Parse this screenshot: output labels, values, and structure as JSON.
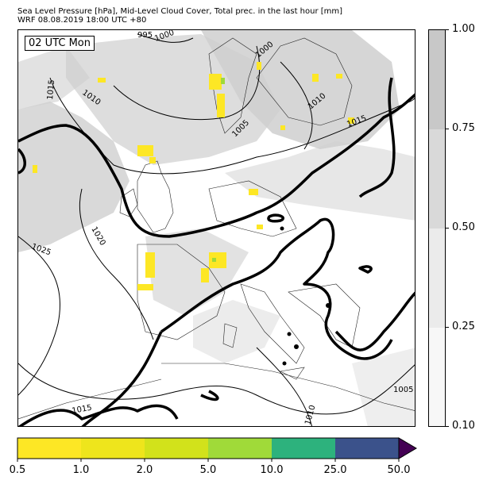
{
  "header": {
    "title_line1": "Sea Level Pressure [hPa], Mid-Level Cloud Cover, Total prec. in the last hour [mm]",
    "title_line2": "WRF 08.08.2019 18:00 UTC +80"
  },
  "map": {
    "time_label": "02 UTC Mon",
    "isobar_labels": [
      "995",
      "1000",
      "1000",
      "1015",
      "1010",
      "1010",
      "1005",
      "1015",
      "1020",
      "1025",
      "1015",
      "1010",
      "1005"
    ]
  },
  "cloud_colorbar": {
    "ticks": [
      "1.00",
      "0.75",
      "0.50",
      "0.25",
      "0.10"
    ],
    "colors": [
      "#c8c8c8",
      "#d9d9d9",
      "#ebebeb",
      "#f7f7f7"
    ]
  },
  "precip_colorbar": {
    "ticks": [
      "0.5",
      "1.0",
      "2.0",
      "5.0",
      "10.0",
      "25.0",
      "50.0"
    ],
    "colors": [
      "#fde725",
      "#eee51c",
      "#d2e21b",
      "#a0da39",
      "#2db27d",
      "#3b528b",
      "#440154"
    ]
  }
}
